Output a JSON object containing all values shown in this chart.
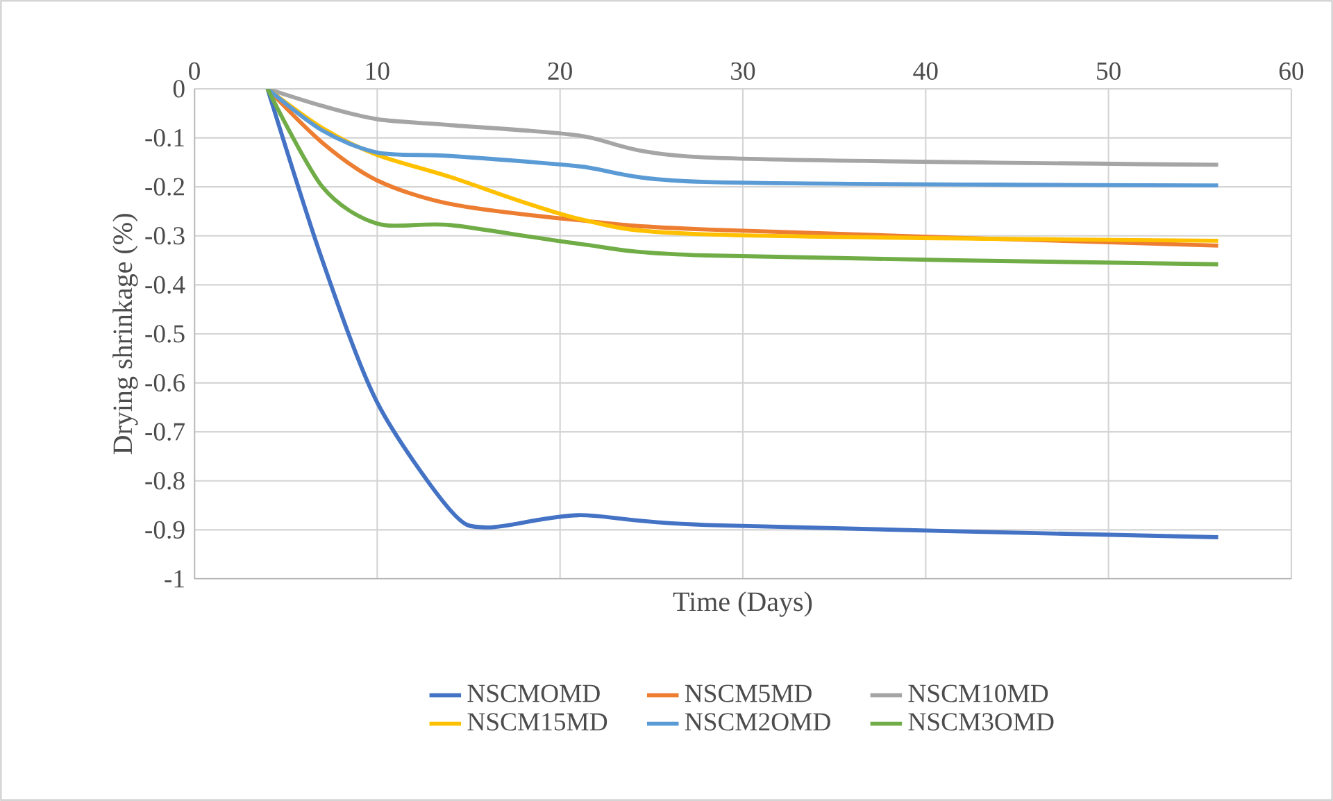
{
  "chart_data": {
    "type": "line",
    "xlabel": "Time (Days)",
    "ylabel": "Drying shrinkage (%)",
    "xlim": [
      0,
      60
    ],
    "ylim": [
      -1,
      0
    ],
    "xticks": [
      0,
      10,
      20,
      30,
      40,
      50,
      60
    ],
    "yticks": [
      -1,
      -0.9,
      -0.8,
      -0.7,
      -0.6,
      -0.5,
      -0.4,
      -0.3,
      -0.2,
      -0.1,
      0
    ],
    "grid": true,
    "legend": "bottom",
    "tick_labels": "xy",
    "line_style": "solid",
    "marker": "none",
    "series": [
      {
        "name": "NSCMOMD",
        "color": "#4472c4",
        "x": [
          4,
          7,
          10,
          14,
          16,
          21,
          28,
          56
        ],
        "values": [
          0,
          -0.35,
          -0.64,
          -0.86,
          -0.895,
          -0.87,
          -0.89,
          -0.915
        ]
      },
      {
        "name": "NSCM5MD",
        "color": "#ed7d31",
        "x": [
          4,
          7,
          10,
          14,
          21,
          28,
          56
        ],
        "values": [
          0,
          -0.11,
          -0.187,
          -0.235,
          -0.268,
          -0.287,
          -0.32
        ]
      },
      {
        "name": "NSCM10MD",
        "color": "#a5a5a5",
        "x": [
          4,
          7,
          10,
          14,
          21,
          28,
          56
        ],
        "values": [
          0,
          -0.035,
          -0.062,
          -0.074,
          -0.095,
          -0.14,
          -0.155
        ]
      },
      {
        "name": "NSCM15MD",
        "color": "#ffc000",
        "x": [
          4,
          7,
          10,
          14,
          21,
          28,
          56
        ],
        "values": [
          0,
          -0.08,
          -0.135,
          -0.18,
          -0.265,
          -0.297,
          -0.31
        ]
      },
      {
        "name": "NSCM2OMD",
        "color": "#5b9bd5",
        "x": [
          4,
          7,
          10,
          14,
          21,
          28,
          56
        ],
        "values": [
          0,
          -0.085,
          -0.13,
          -0.137,
          -0.158,
          -0.19,
          -0.197
        ]
      },
      {
        "name": "NSCM3OMD",
        "color": "#70ad47",
        "x": [
          4,
          7,
          10,
          14,
          21,
          28,
          56
        ],
        "values": [
          0,
          -0.2,
          -0.275,
          -0.278,
          -0.316,
          -0.34,
          -0.358
        ]
      }
    ]
  }
}
